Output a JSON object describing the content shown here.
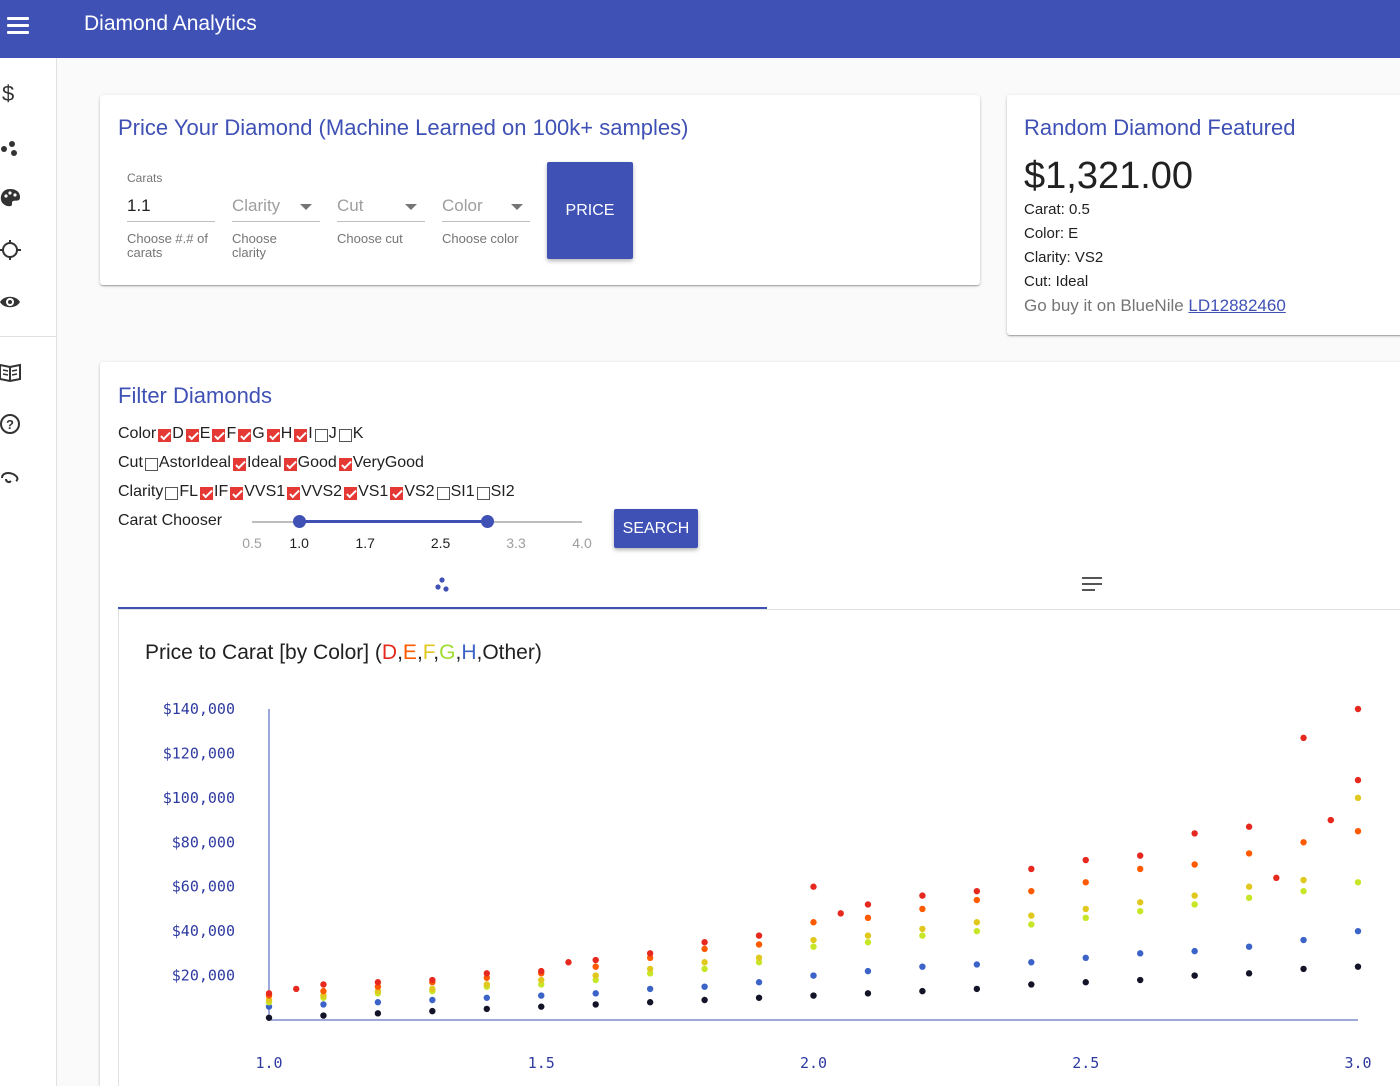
{
  "app": {
    "title": "Diamond Analytics"
  },
  "sidebar": {
    "items": [
      {
        "icon": "dollar-icon"
      },
      {
        "icon": "scatter-icon"
      },
      {
        "icon": "palette-icon"
      },
      {
        "icon": "target-icon"
      },
      {
        "icon": "eye-icon"
      },
      {
        "icon": "book-icon"
      },
      {
        "icon": "help-icon"
      },
      {
        "icon": "link-icon"
      }
    ]
  },
  "pricer": {
    "title": "Price Your Diamond (Machine Learned on 100k+ samples)",
    "carats": {
      "label": "Carats",
      "value": "1.1",
      "helper": "Choose #.# of carats"
    },
    "clarity": {
      "placeholder": "Clarity",
      "helper": "Choose clarity"
    },
    "cut": {
      "placeholder": "Cut",
      "helper": "Choose cut"
    },
    "color": {
      "placeholder": "Color",
      "helper": "Choose color"
    },
    "button": "PRICE"
  },
  "featured": {
    "title": "Random Diamond Featured",
    "price": "$1,321.00",
    "carat": "Carat: 0.5",
    "color": "Color: E",
    "clarity": "Clarity: VS2",
    "cut": "Cut: Ideal",
    "buy_text": "Go buy it on BlueNile ",
    "buy_link": "LD12882460"
  },
  "filter": {
    "title": "Filter Diamonds",
    "color_label": "Color",
    "colors": [
      {
        "label": "D",
        "checked": true
      },
      {
        "label": "E",
        "checked": true
      },
      {
        "label": "F",
        "checked": true
      },
      {
        "label": "G",
        "checked": true
      },
      {
        "label": "H",
        "checked": true
      },
      {
        "label": "I",
        "checked": true
      },
      {
        "label": "J",
        "checked": false
      },
      {
        "label": "K",
        "checked": false
      }
    ],
    "cut_label": "Cut",
    "cuts": [
      {
        "label": "AstorIdeal",
        "checked": false
      },
      {
        "label": "Ideal",
        "checked": true
      },
      {
        "label": "Good",
        "checked": true
      },
      {
        "label": "VeryGood",
        "checked": true
      }
    ],
    "clarity_label": "Clarity",
    "clarities": [
      {
        "label": "FL",
        "checked": false
      },
      {
        "label": "IF",
        "checked": true
      },
      {
        "label": "VVS1",
        "checked": true
      },
      {
        "label": "VVS2",
        "checked": true
      },
      {
        "label": "VS1",
        "checked": true
      },
      {
        "label": "VS2",
        "checked": true
      },
      {
        "label": "SI1",
        "checked": false
      },
      {
        "label": "SI2",
        "checked": false
      }
    ],
    "carat_label": "Carat Chooser",
    "slider": {
      "min": 0.5,
      "max": 4.0,
      "low": 1.0,
      "high": 3.0,
      "marks": [
        "0.5",
        "1.0",
        "1.7",
        "2.5",
        "3.3",
        "4.0"
      ]
    },
    "search_button": "SEARCH"
  },
  "tabs": [
    {
      "icon": "scatter-icon",
      "active": true
    },
    {
      "icon": "list-icon",
      "active": false
    }
  ],
  "colors": {
    "primary": "#3f51b5",
    "D": "#e6281e",
    "E": "#ff5a00",
    "F": "#e1c81e",
    "G": "#c8e628",
    "H": "#3c64c8",
    "Other": "#141428"
  },
  "chart_data": {
    "type": "scatter",
    "title_prefix": "Price to Carat [by Color] (",
    "title_parts": [
      "D",
      "E",
      "F",
      "G",
      "H",
      "Other"
    ],
    "title_suffix": ")",
    "xlabel": "",
    "ylabel": "",
    "xlim": [
      1.0,
      3.0
    ],
    "ylim": [
      0,
      140000
    ],
    "xticks": [
      "1.0",
      "1.5",
      "2.0",
      "2.5",
      "3.0"
    ],
    "yticks": [
      "$20,000",
      "$40,000",
      "$60,000",
      "$80,000",
      "$100,000",
      "$120,000",
      "$140,000"
    ],
    "series": [
      {
        "name": "D",
        "color": "#e6281e",
        "x": [
          1.0,
          1.05,
          1.1,
          1.2,
          1.3,
          1.4,
          1.5,
          1.55,
          1.6,
          1.7,
          1.8,
          1.9,
          2.0,
          2.05,
          2.1,
          2.2,
          2.3,
          2.4,
          2.5,
          2.6,
          2.7,
          2.8,
          2.85,
          2.9,
          2.95,
          3.0,
          3.0
        ],
        "y": [
          12000,
          14000,
          16000,
          17000,
          18000,
          21000,
          22000,
          26000,
          27000,
          30000,
          35000,
          38000,
          60000,
          48000,
          52000,
          56000,
          58000,
          68000,
          72000,
          74000,
          84000,
          87000,
          64000,
          127000,
          90000,
          140000,
          108000
        ]
      },
      {
        "name": "E",
        "color": "#ff5a00",
        "x": [
          1.0,
          1.1,
          1.2,
          1.3,
          1.4,
          1.5,
          1.6,
          1.7,
          1.8,
          1.9,
          2.0,
          2.1,
          2.2,
          2.3,
          2.4,
          2.5,
          2.6,
          2.7,
          2.8,
          2.9,
          3.0
        ],
        "y": [
          11000,
          13000,
          15000,
          17000,
          19000,
          21000,
          24000,
          28000,
          32000,
          34000,
          44000,
          46000,
          50000,
          54000,
          58000,
          62000,
          68000,
          70000,
          75000,
          80000,
          85000
        ]
      },
      {
        "name": "F",
        "color": "#e1c81e",
        "x": [
          1.0,
          1.1,
          1.2,
          1.3,
          1.4,
          1.5,
          1.6,
          1.7,
          1.8,
          1.9,
          2.0,
          2.1,
          2.2,
          2.3,
          2.4,
          2.5,
          2.6,
          2.7,
          2.8,
          2.9,
          3.0
        ],
        "y": [
          9000,
          11000,
          13000,
          14000,
          16000,
          18000,
          20000,
          23000,
          26000,
          28000,
          36000,
          38000,
          41000,
          44000,
          47000,
          50000,
          53000,
          56000,
          60000,
          63000,
          100000
        ]
      },
      {
        "name": "G",
        "color": "#c8e628",
        "x": [
          1.0,
          1.1,
          1.2,
          1.3,
          1.4,
          1.5,
          1.6,
          1.7,
          1.8,
          1.9,
          2.0,
          2.1,
          2.2,
          2.3,
          2.4,
          2.5,
          2.6,
          2.7,
          2.8,
          2.9,
          3.0
        ],
        "y": [
          8000,
          10000,
          12000,
          13000,
          15000,
          16000,
          18000,
          21000,
          23000,
          26000,
          33000,
          35000,
          38000,
          40000,
          43000,
          46000,
          49000,
          52000,
          55000,
          58000,
          62000
        ]
      },
      {
        "name": "H",
        "color": "#3c64c8",
        "x": [
          1.0,
          1.1,
          1.2,
          1.3,
          1.4,
          1.5,
          1.6,
          1.7,
          1.8,
          1.9,
          2.0,
          2.1,
          2.2,
          2.3,
          2.4,
          2.5,
          2.6,
          2.7,
          2.8,
          2.9,
          3.0
        ],
        "y": [
          6000,
          7000,
          8000,
          9000,
          10000,
          11000,
          12000,
          14000,
          15000,
          17000,
          20000,
          22000,
          24000,
          25000,
          26000,
          28000,
          30000,
          31000,
          33000,
          36000,
          40000
        ]
      },
      {
        "name": "Other",
        "color": "#141428",
        "x": [
          1.0,
          1.1,
          1.2,
          1.3,
          1.4,
          1.5,
          1.6,
          1.7,
          1.8,
          1.9,
          2.0,
          2.1,
          2.2,
          2.3,
          2.4,
          2.5,
          2.6,
          2.7,
          2.8,
          2.9,
          3.0
        ],
        "y": [
          1000,
          2000,
          3000,
          4000,
          5000,
          6000,
          7000,
          8000,
          9000,
          10000,
          11000,
          12000,
          13000,
          14000,
          16000,
          17000,
          18000,
          20000,
          21000,
          23000,
          24000
        ]
      }
    ]
  }
}
